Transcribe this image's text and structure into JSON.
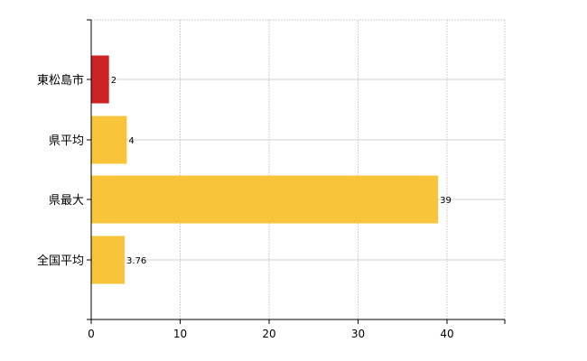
{
  "chart_data": {
    "type": "bar",
    "orientation": "horizontal",
    "categories": [
      "東松島市",
      "県平均",
      "県最大",
      "全国平均"
    ],
    "values": [
      2,
      4,
      39,
      3.76
    ],
    "data_labels": [
      "2",
      "4",
      "39",
      "3.76"
    ],
    "bar_colors": [
      "#cc2222",
      "#f7c43a",
      "#f7c43a",
      "#f7c43a"
    ],
    "xlim": [
      0,
      46.5
    ],
    "xticks": [
      0,
      10,
      20,
      30,
      40
    ],
    "xtick_labels": [
      "0",
      "10",
      "20",
      "30",
      "40"
    ],
    "grid": true,
    "legend": "none"
  },
  "colors": {
    "highlight": "#cc2222",
    "bar": "#f7c43a",
    "grid": "#d0d0d0",
    "axis": "#000000"
  }
}
